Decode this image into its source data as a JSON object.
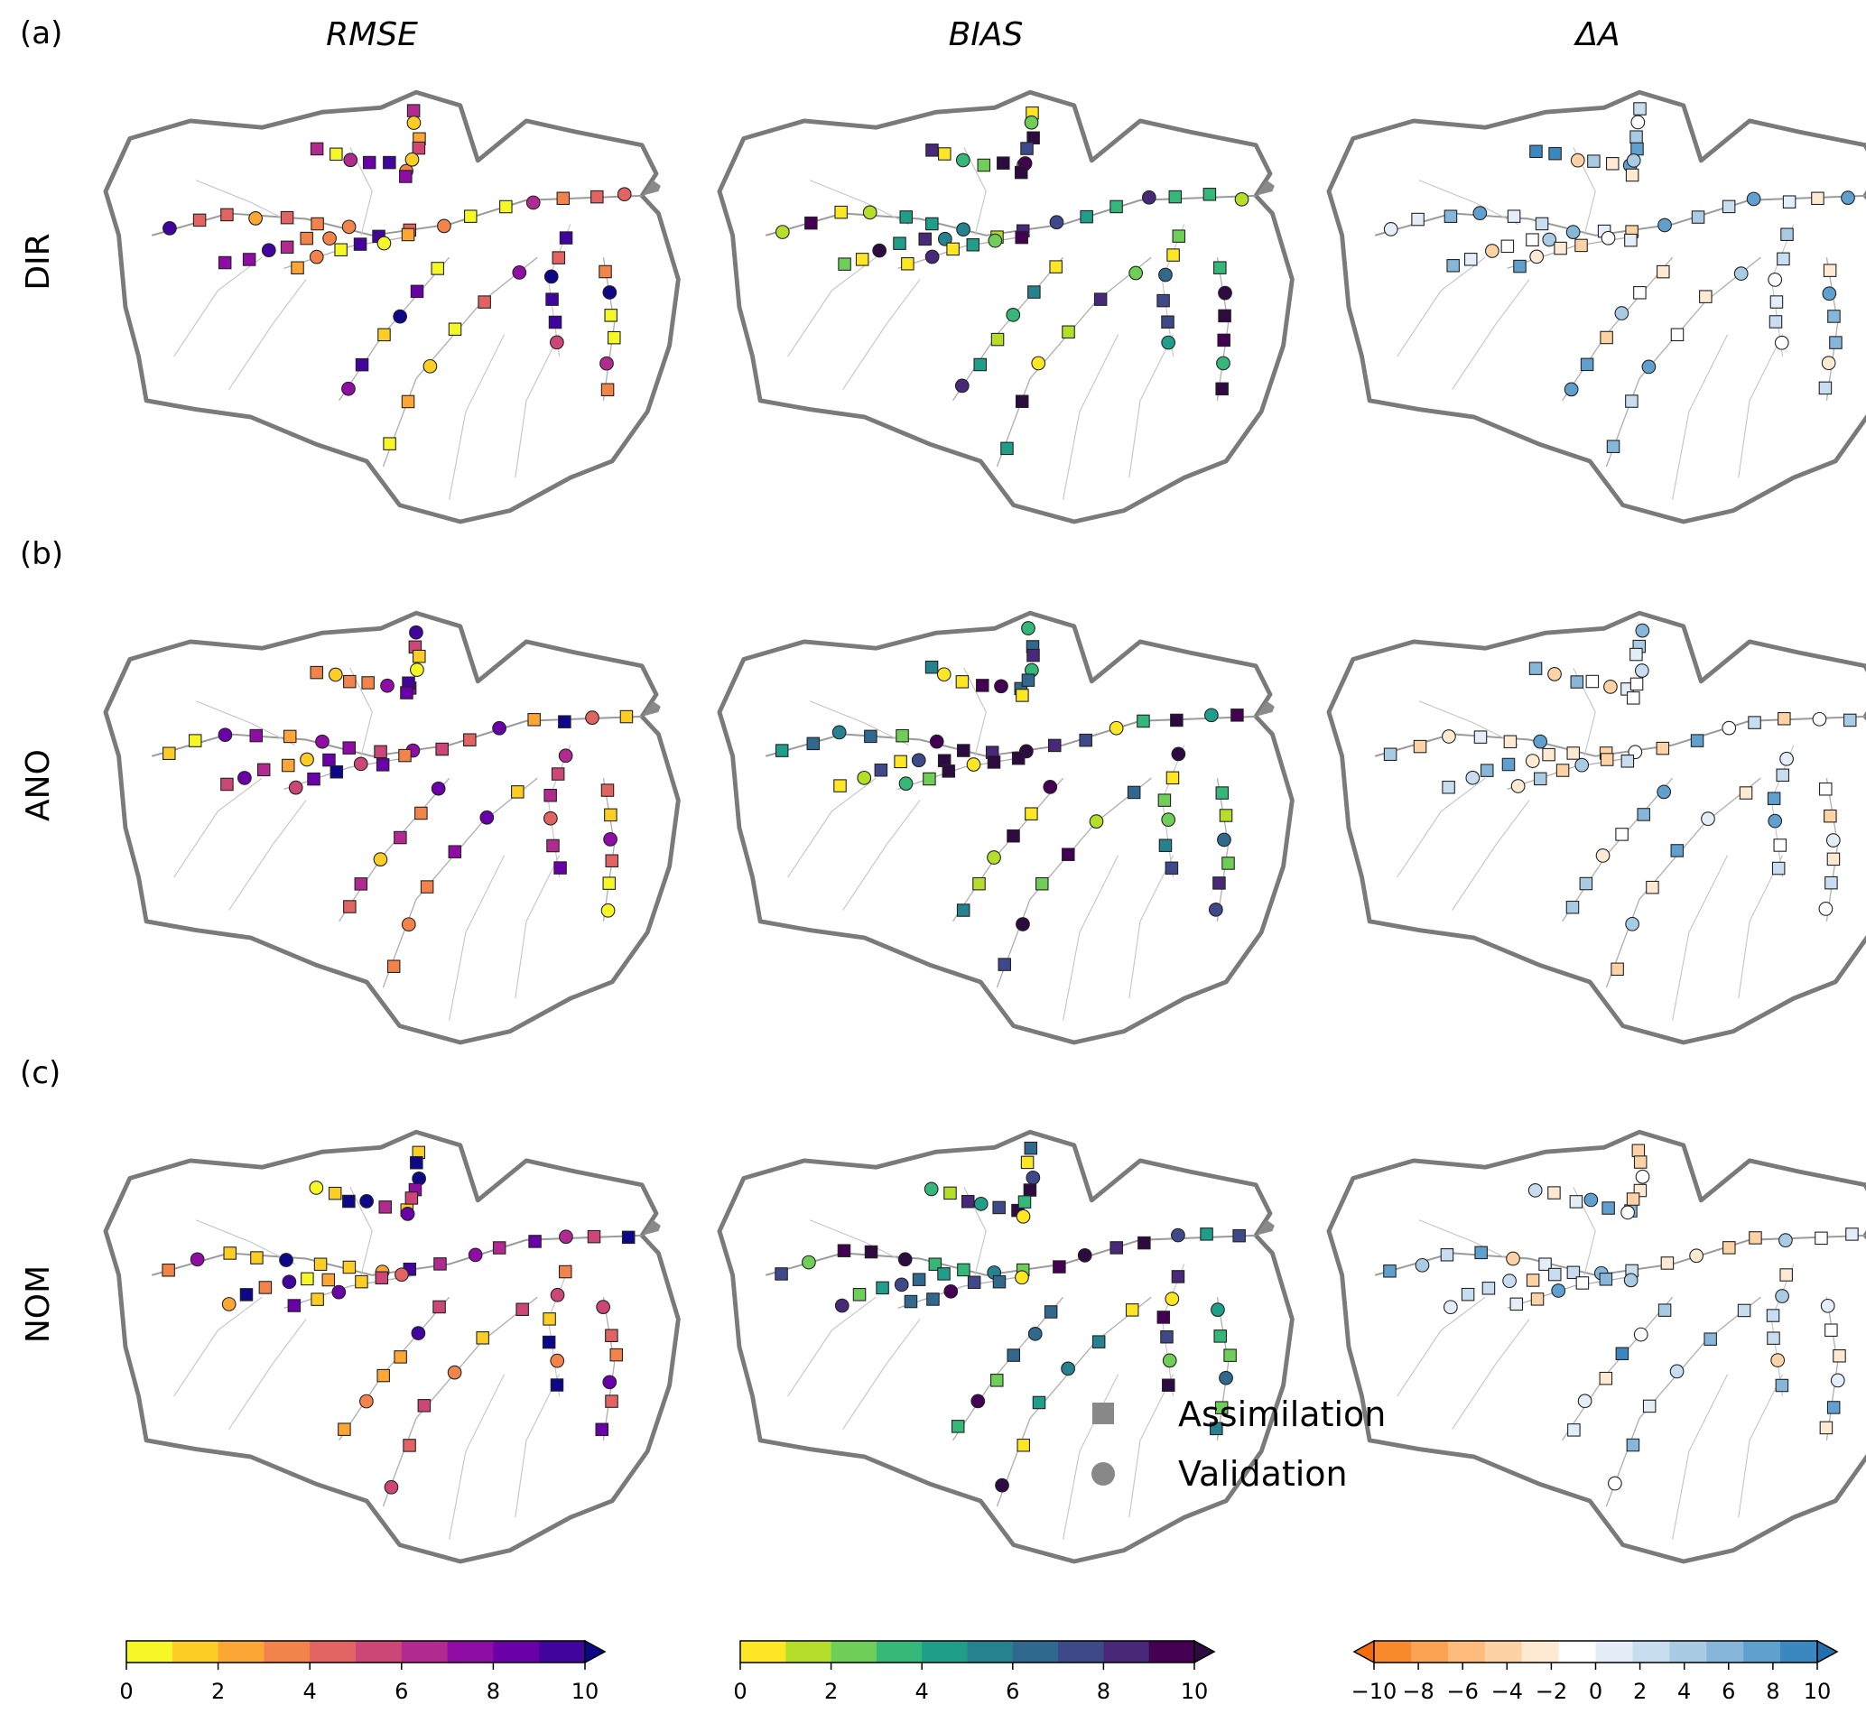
{
  "panel_labels": [
    "(a)",
    "(b)",
    "(c)"
  ],
  "column_titles": [
    "RMSE",
    "BIAS",
    "ΔA"
  ],
  "row_labels": [
    "DIR",
    "ANO",
    "NOM"
  ],
  "legend": {
    "square": "Assimilation",
    "circle": "Validation"
  },
  "colorbars": [
    {
      "ticks": [
        "0",
        "2",
        "4",
        "6",
        "8",
        "10"
      ],
      "colors": [
        "#f6f727",
        "#fcce25",
        "#fca636",
        "#f2844b",
        "#e16462",
        "#cc4778",
        "#b12a90",
        "#8f0da4",
        "#6a00a8",
        "#41049d",
        "#0d0887"
      ]
    },
    {
      "ticks": [
        "0",
        "2",
        "4",
        "6",
        "8",
        "10"
      ],
      "colors": [
        "#fde725",
        "#b5de2b",
        "#6ece58",
        "#35b779",
        "#1f9e89",
        "#26828e",
        "#31688e",
        "#3e4989",
        "#482878",
        "#440154",
        "#2d0b40"
      ]
    },
    {
      "ticks": [
        "−10",
        "−8",
        "−6",
        "−4",
        "−2",
        "0",
        "2",
        "4",
        "6",
        "8",
        "10"
      ],
      "colors": [
        "#f46d0a",
        "#f88a2c",
        "#fba353",
        "#fdbb7c",
        "#fdd3a6",
        "#feead2",
        "#ffffff",
        "#e4eef8",
        "#c9ddf0",
        "#a9cce4",
        "#86b7da",
        "#5fa0ce",
        "#3b87c0",
        "#2470ae"
      ]
    }
  ]
}
